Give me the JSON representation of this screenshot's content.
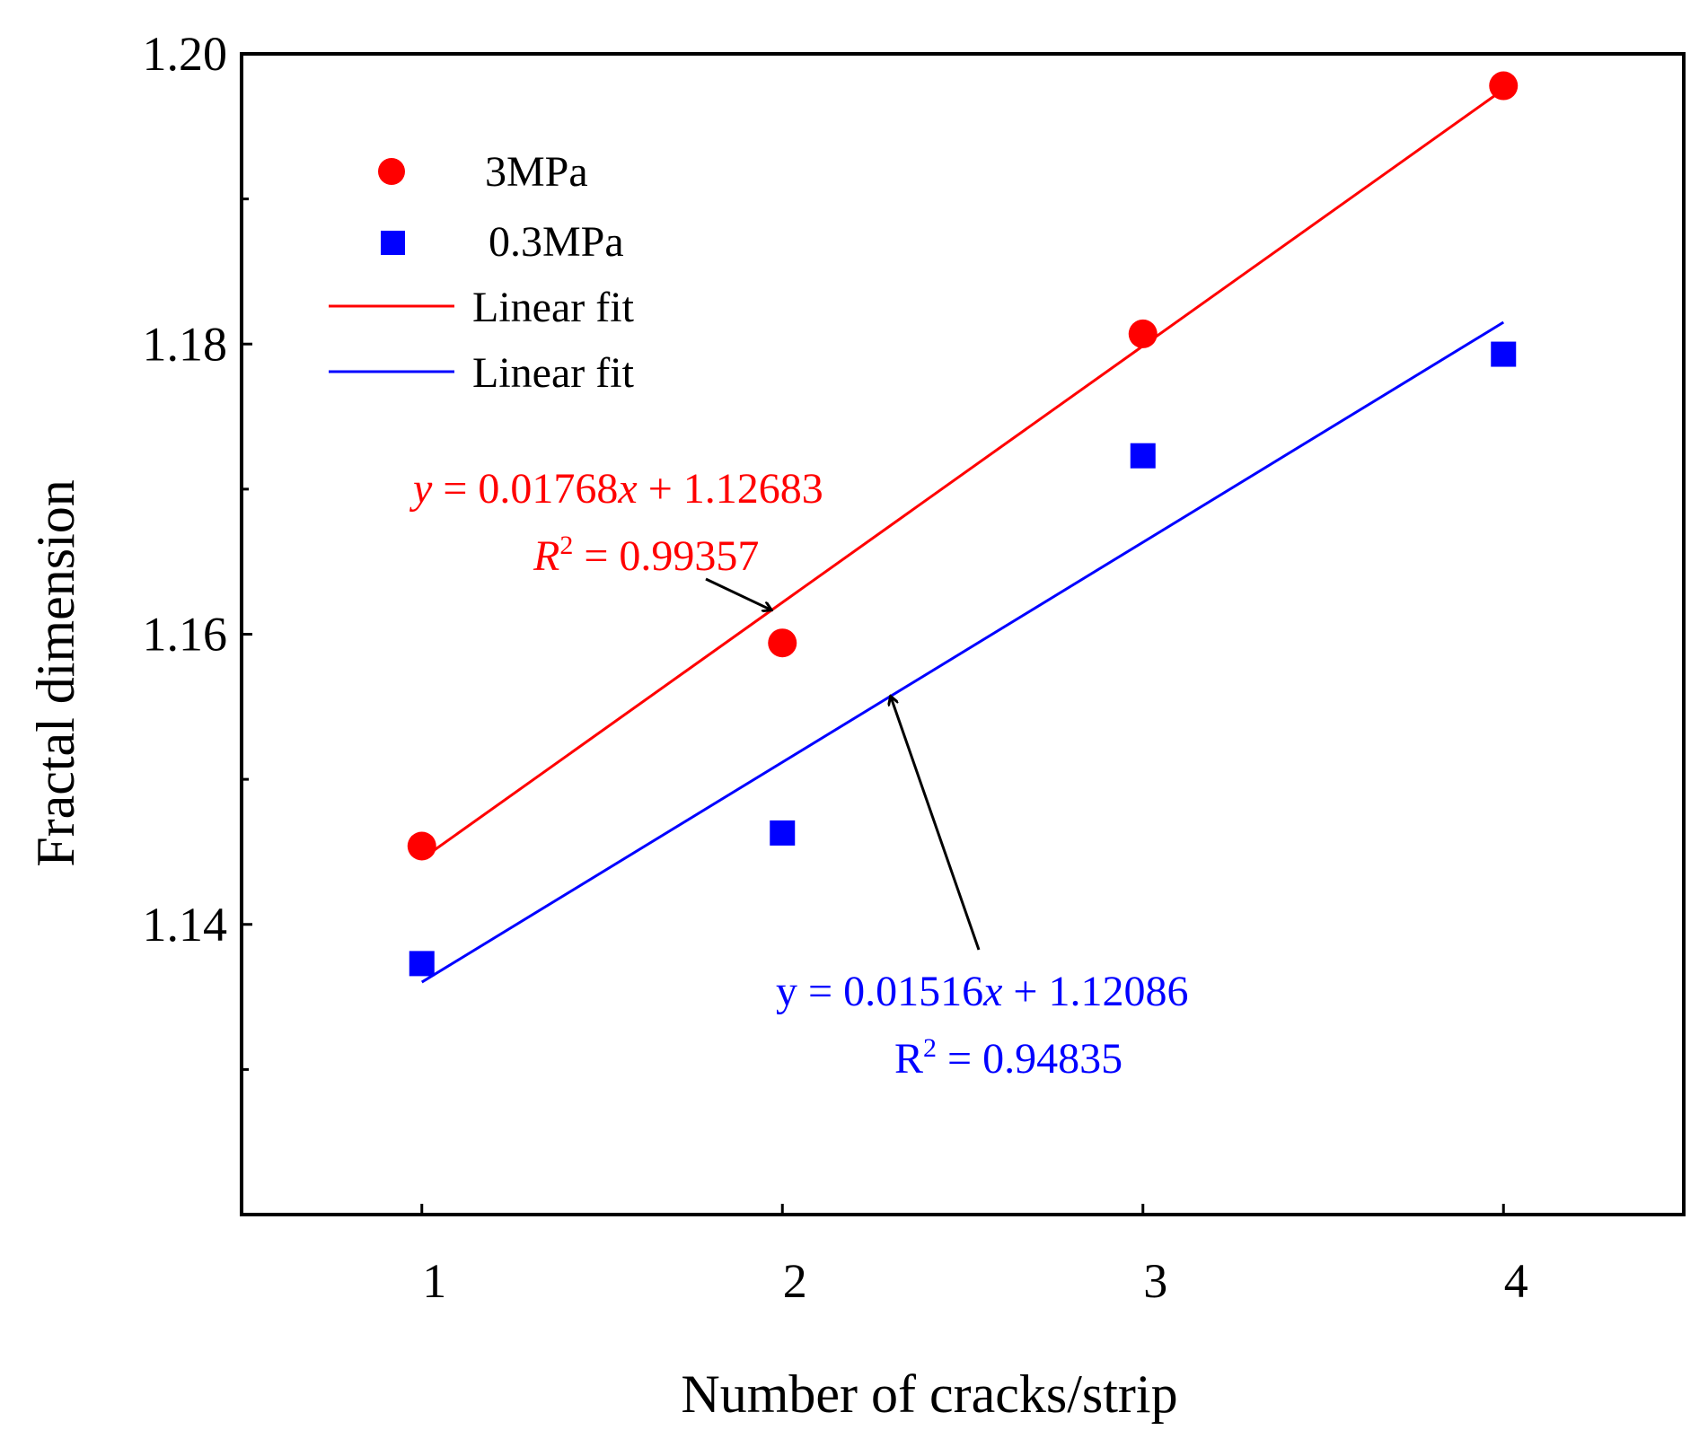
{
  "chart_data": {
    "type": "scatter",
    "title": "",
    "xlabel": "Number of cracks/strip",
    "ylabel": "Fractal dimension",
    "xlim": [
      0.5,
      4.5
    ],
    "ylim": [
      1.12,
      1.2
    ],
    "x_ticks": [
      1,
      2,
      3,
      4
    ],
    "x_tick_labels": [
      "1",
      "2",
      "3",
      "4"
    ],
    "y_ticks": [
      1.14,
      1.16,
      1.18,
      1.2
    ],
    "y_tick_labels": [
      "1.14",
      "1.16",
      "1.18",
      "1.20"
    ],
    "y_minor_ticks": [
      1.13,
      1.15,
      1.17,
      1.19
    ],
    "grid": false,
    "legend_position": "top-left",
    "series": [
      {
        "name": "3MPa",
        "marker": "circle",
        "color": "#ff0000",
        "x": [
          1,
          2,
          3,
          4
        ],
        "y": [
          1.1454,
          1.1594,
          1.1807,
          1.1978
        ]
      },
      {
        "name": "0.3MPa",
        "marker": "square",
        "color": "#0000ff",
        "x": [
          1,
          2,
          3,
          4
        ],
        "y": [
          1.1373,
          1.1463,
          1.1723,
          1.1793
        ]
      }
    ],
    "fits": [
      {
        "name": "Linear fit",
        "color": "#ff0000",
        "slope": 0.01768,
        "intercept": 1.12683,
        "x_range": [
          1,
          4
        ],
        "equation": {
          "y_var": "y",
          "mid": " = 0.01768",
          "x_var": "x",
          "tail": " + 1.12683"
        },
        "r2": {
          "r_var": "R",
          "sup": "2",
          "value_text": " = 0.99357"
        },
        "arrow_target_x": 1.97
      },
      {
        "name": "Linear fit",
        "color": "#0000ff",
        "slope": 0.01516,
        "intercept": 1.12086,
        "x_range": [
          1,
          4
        ],
        "equation": {
          "y_var": "y",
          "mid": " = 0.01516",
          "x_var": "x",
          "tail": " + 1.12086"
        },
        "r2": {
          "r_var": "R",
          "sup": "2",
          "value_text": " = 0.94835"
        },
        "arrow_target_x": 2.3
      }
    ]
  }
}
